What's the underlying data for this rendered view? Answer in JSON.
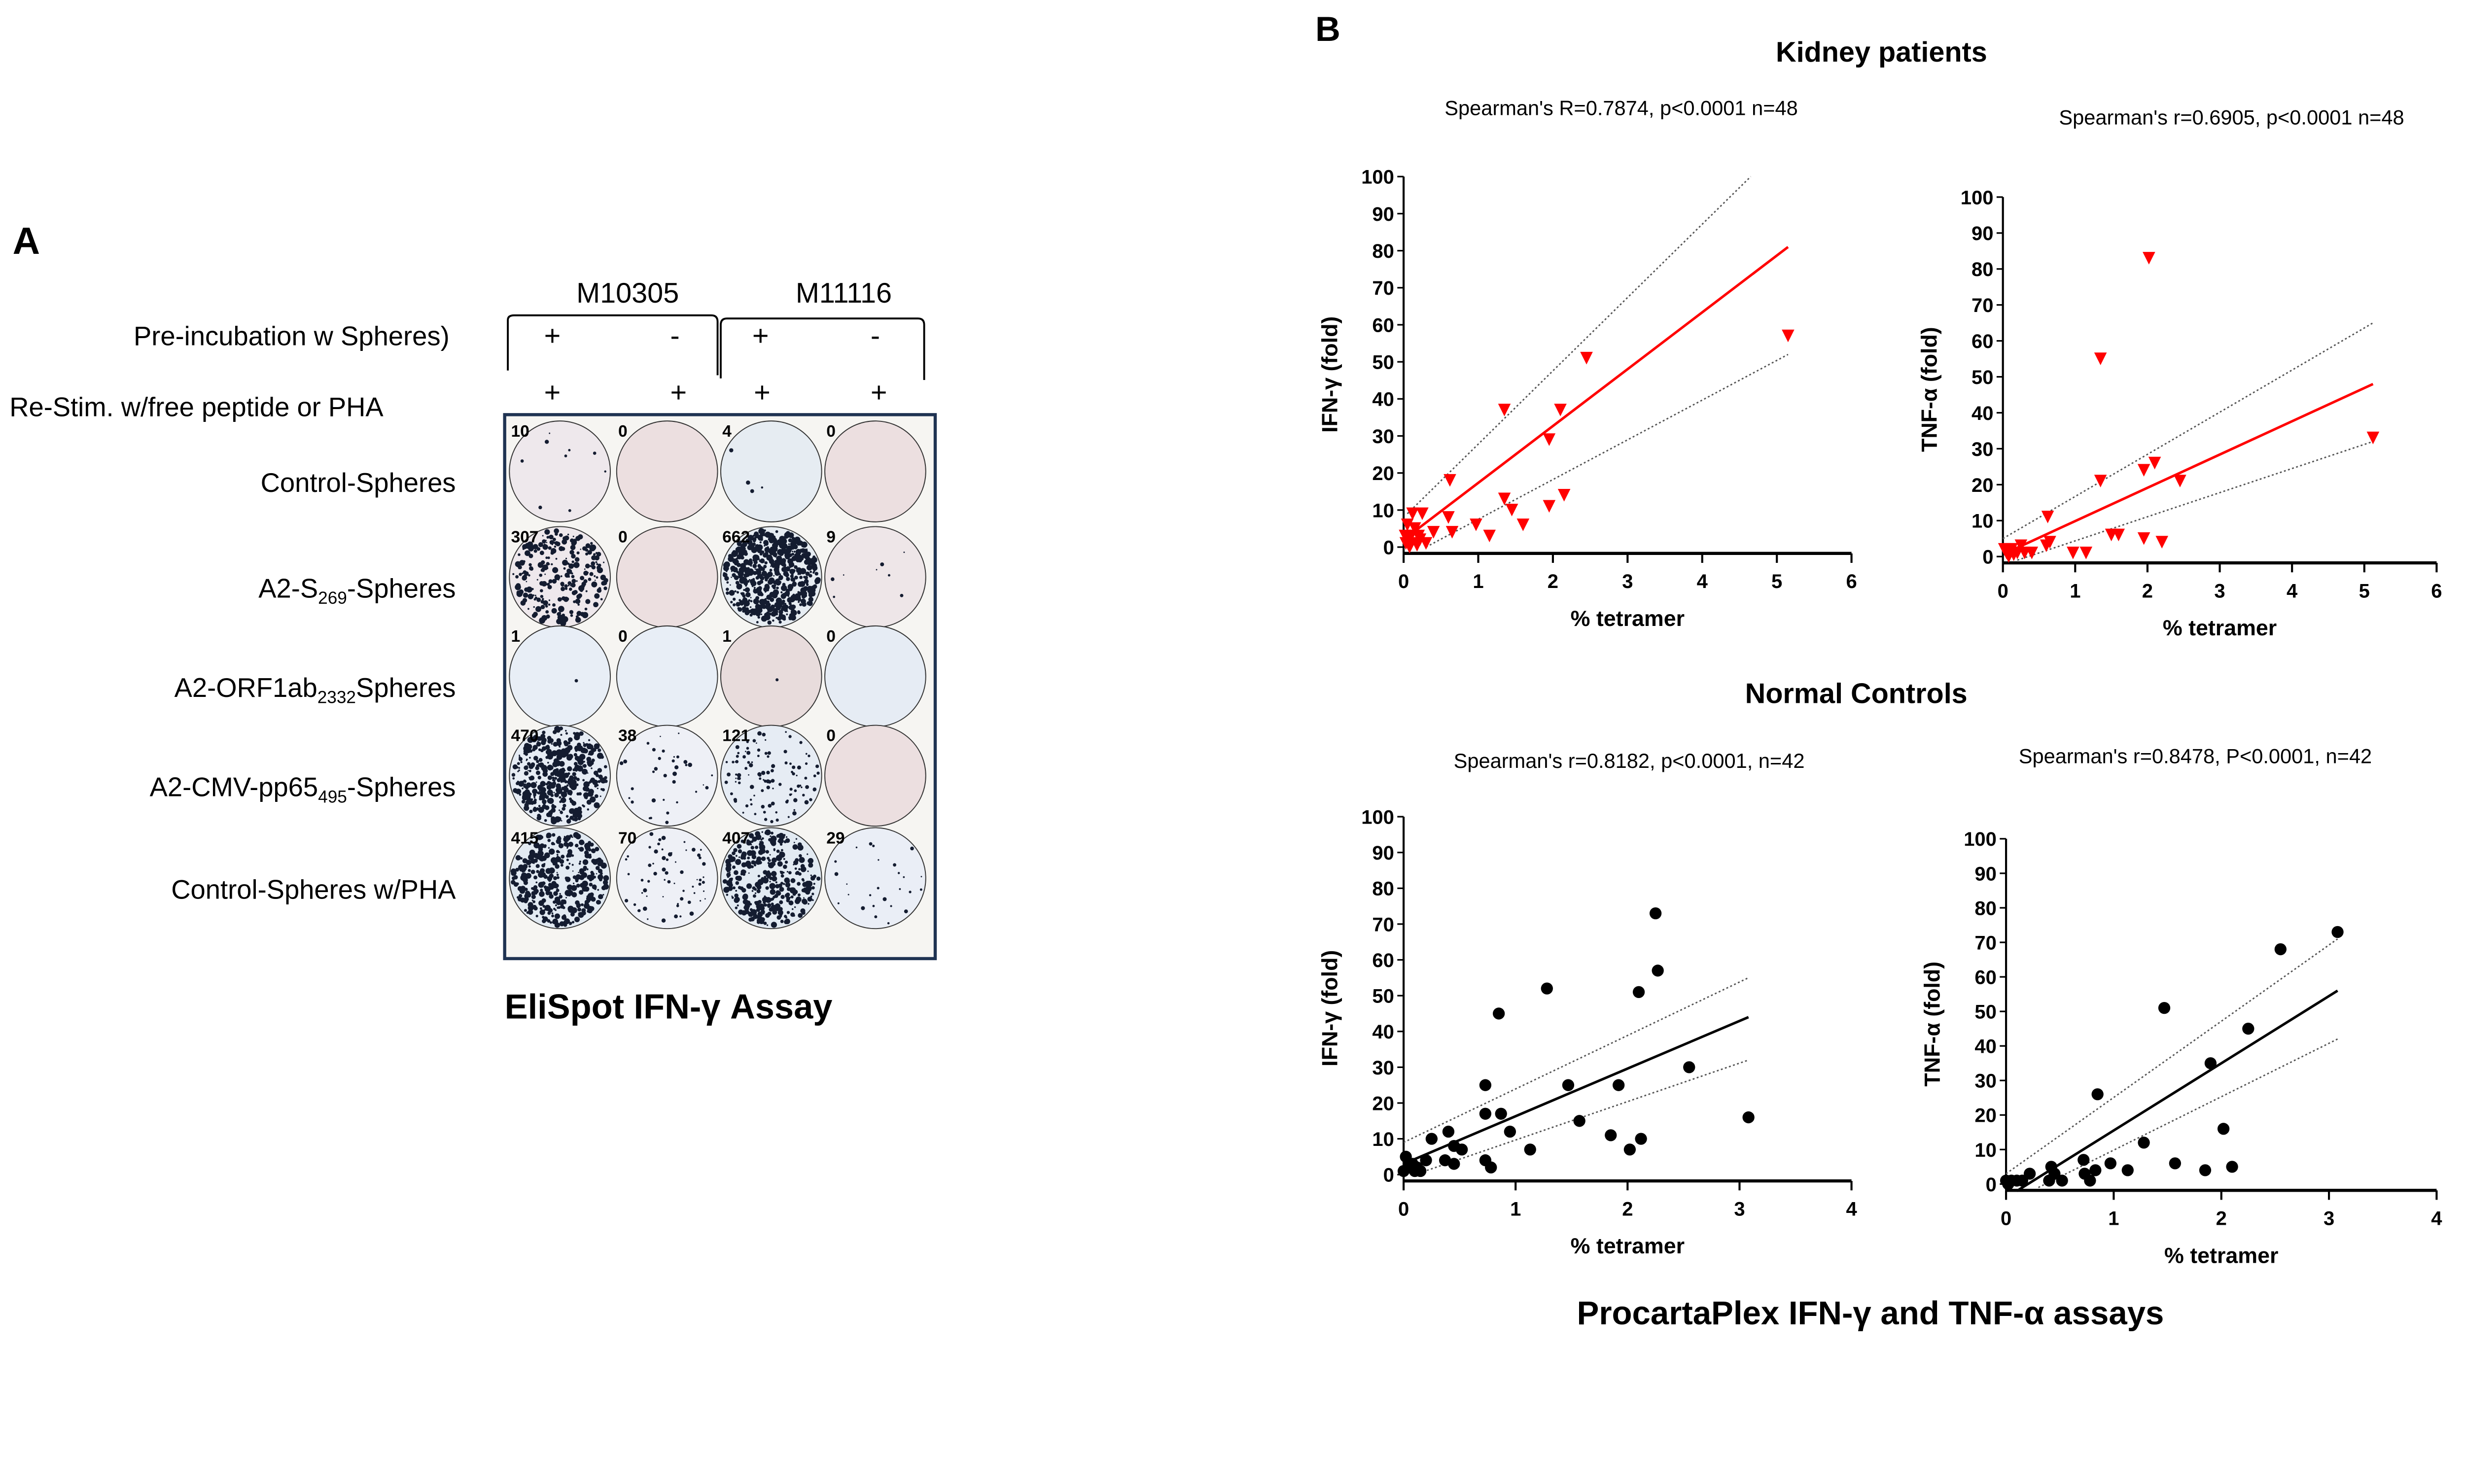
{
  "panel_a": {
    "letter": "A",
    "donors": [
      "M10305",
      "M11116"
    ],
    "pre_incubation_label": "Pre-incubation w Spheres)",
    "restim_label": "Re-Stim. w/free peptide or PHA",
    "pre_incubation_signs": [
      "+",
      "-",
      "+",
      "-"
    ],
    "restim_signs": [
      "+",
      "+",
      "+",
      "+"
    ],
    "rows": [
      {
        "pre": "Control-Spheres",
        "sub": "",
        "post": ""
      },
      {
        "pre": "A2-S",
        "sub": "269",
        "post": "-Spheres"
      },
      {
        "pre": "A2-ORF1ab",
        "sub": "2332",
        "post": "Spheres"
      },
      {
        "pre": "A2-CMV-pp65",
        "sub": "495",
        "post": "-Spheres"
      },
      {
        "pre": "Control-Spheres w/PHA",
        "sub": "",
        "post": ""
      }
    ],
    "wells": [
      [
        {
          "count": "10",
          "tint": "#eee8ec"
        },
        {
          "count": "0",
          "tint": "#ecdfe0"
        },
        {
          "count": "4",
          "tint": "#e6ecf2"
        },
        {
          "count": "0",
          "tint": "#ecdfe0"
        }
      ],
      [
        {
          "count": "307",
          "tint": "#eee8ec"
        },
        {
          "count": "0",
          "tint": "#ecdfe0"
        },
        {
          "count": "662",
          "tint": "#e6ecf2"
        },
        {
          "count": "9",
          "tint": "#eee6e8"
        }
      ],
      [
        {
          "count": "1",
          "tint": "#e8eef6"
        },
        {
          "count": "0",
          "tint": "#e8eef6"
        },
        {
          "count": "1",
          "tint": "#e8dcdc"
        },
        {
          "count": "0",
          "tint": "#e6ecf4"
        }
      ],
      [
        {
          "count": "470",
          "tint": "#e6ecf4"
        },
        {
          "count": "38",
          "tint": "#eef0f6"
        },
        {
          "count": "121",
          "tint": "#e6ecf4"
        },
        {
          "count": "0",
          "tint": "#ecdfe0"
        }
      ],
      [
        {
          "count": "415",
          "tint": "#e2eaf2"
        },
        {
          "count": "70",
          "tint": "#eef0f6"
        },
        {
          "count": "407",
          "tint": "#e2eaf2"
        },
        {
          "count": "29",
          "tint": "#eaeef6"
        }
      ]
    ],
    "caption": "EliSpot IFN-γ Assay",
    "plate_border_color": "#1f3352",
    "spot_color": "#141c30"
  },
  "panel_b": {
    "letter": "B",
    "group_titles": [
      "Kidney patients",
      "Normal Controls"
    ],
    "caption": "ProcartaPlex IFN-γ and TNF-α assays"
  },
  "chart_data": [
    {
      "type": "scatter",
      "group": "Kidney patients",
      "title": "Spearman's R=0.7874, p<0.0001 n=48",
      "xlabel": "% tetramer",
      "ylabel": "IFN-γ (fold)",
      "xlim": [
        0,
        6
      ],
      "ylim": [
        0,
        100
      ],
      "xticks": [
        "0",
        "1",
        "2",
        "3",
        "4",
        "5",
        "6"
      ],
      "yticks": [
        "0",
        "10",
        "20",
        "30",
        "40",
        "50",
        "60",
        "70",
        "80",
        "90",
        "100"
      ],
      "marker": "triangle-down",
      "color": "#ff0000",
      "points": [
        [
          5.15,
          57
        ],
        [
          2.45,
          51
        ],
        [
          1.35,
          37
        ],
        [
          2.1,
          37
        ],
        [
          1.95,
          29
        ],
        [
          0.62,
          18
        ],
        [
          2.15,
          14
        ],
        [
          1.35,
          13
        ],
        [
          1.45,
          10
        ],
        [
          1.95,
          11
        ],
        [
          0.6,
          8
        ],
        [
          1.6,
          6
        ],
        [
          0.97,
          6
        ],
        [
          1.15,
          3
        ],
        [
          0.4,
          4
        ],
        [
          0.65,
          4
        ],
        [
          0.12,
          9
        ],
        [
          0.25,
          9
        ],
        [
          0.05,
          6
        ],
        [
          0.15,
          5
        ],
        [
          0.2,
          3
        ],
        [
          0.05,
          2
        ],
        [
          0.1,
          1
        ],
        [
          0.3,
          1
        ],
        [
          0.02,
          3
        ],
        [
          0.08,
          0
        ],
        [
          0.18,
          0.5
        ],
        [
          0.03,
          1
        ],
        [
          0.1,
          3
        ],
        [
          0.22,
          2
        ]
      ],
      "fit": [
        [
          0,
          2
        ],
        [
          5.15,
          81
        ]
      ],
      "ci_upper": [
        [
          0.05,
          9
        ],
        [
          4.65,
          100
        ]
      ],
      "ci_lower": [
        [
          0.3,
          0
        ],
        [
          5.15,
          52
        ]
      ]
    },
    {
      "type": "scatter",
      "group": "Kidney patients",
      "title": "Spearman's r=0.6905, p<0.0001 n=48",
      "xlabel": "% tetramer",
      "ylabel": "TNF-α (fold)",
      "xlim": [
        0,
        6
      ],
      "ylim": [
        0,
        100
      ],
      "xticks": [
        "0",
        "1",
        "2",
        "3",
        "4",
        "5",
        "6"
      ],
      "yticks": [
        "0",
        "10",
        "20",
        "30",
        "40",
        "50",
        "60",
        "70",
        "80",
        "90",
        "100"
      ],
      "marker": "triangle-down",
      "color": "#ff0000",
      "points": [
        [
          2.02,
          83
        ],
        [
          1.35,
          55
        ],
        [
          5.12,
          33
        ],
        [
          2.1,
          26
        ],
        [
          1.95,
          24
        ],
        [
          1.35,
          21
        ],
        [
          2.45,
          21
        ],
        [
          0.62,
          11
        ],
        [
          1.5,
          6
        ],
        [
          1.6,
          6
        ],
        [
          1.95,
          5
        ],
        [
          2.2,
          4
        ],
        [
          0.65,
          4
        ],
        [
          0.6,
          3
        ],
        [
          0.97,
          1
        ],
        [
          1.15,
          1
        ],
        [
          0.4,
          1
        ],
        [
          0.25,
          3
        ],
        [
          0.02,
          2
        ],
        [
          0.05,
          1
        ],
        [
          0.1,
          2
        ],
        [
          0.15,
          0.5
        ],
        [
          0.2,
          1
        ],
        [
          0.08,
          0
        ],
        [
          0.3,
          1
        ],
        [
          0.12,
          2
        ]
      ],
      "fit": [
        [
          0.15,
          2
        ],
        [
          5.12,
          48
        ]
      ],
      "ci_upper": [
        [
          0,
          5
        ],
        [
          5.12,
          65
        ]
      ],
      "ci_lower": [
        [
          0.2,
          -1
        ],
        [
          5.12,
          32
        ]
      ]
    },
    {
      "type": "scatter",
      "group": "Normal Controls",
      "title": "Spearman's r=0.8182, p<0.0001, n=42",
      "xlabel": "% tetramer",
      "ylabel": "IFN-γ (fold)",
      "xlim": [
        0,
        4
      ],
      "ylim": [
        0,
        100
      ],
      "xticks": [
        "0",
        "1",
        "2",
        "3",
        "4"
      ],
      "yticks": [
        "0",
        "10",
        "20",
        "30",
        "40",
        "50",
        "60",
        "70",
        "80",
        "90",
        "100"
      ],
      "marker": "circle",
      "color": "#000000",
      "points": [
        [
          2.25,
          73
        ],
        [
          2.27,
          57
        ],
        [
          1.28,
          52
        ],
        [
          2.1,
          51
        ],
        [
          0.85,
          45
        ],
        [
          2.55,
          30
        ],
        [
          0.73,
          25
        ],
        [
          1.47,
          25
        ],
        [
          1.92,
          25
        ],
        [
          0.73,
          17
        ],
        [
          0.87,
          17
        ],
        [
          1.57,
          15
        ],
        [
          3.08,
          16
        ],
        [
          0.95,
          12
        ],
        [
          0.4,
          12
        ],
        [
          1.85,
          11
        ],
        [
          2.12,
          10
        ],
        [
          0.25,
          10
        ],
        [
          0.45,
          8
        ],
        [
          0.52,
          7
        ],
        [
          1.13,
          7
        ],
        [
          2.02,
          7
        ],
        [
          0.37,
          4
        ],
        [
          0.73,
          4
        ],
        [
          0.45,
          3
        ],
        [
          0.78,
          2
        ],
        [
          0.2,
          4
        ],
        [
          0.02,
          5
        ],
        [
          0.05,
          2
        ],
        [
          0.1,
          1
        ],
        [
          0.15,
          1
        ],
        [
          0.0,
          1
        ],
        [
          0.08,
          3
        ],
        [
          0.12,
          2
        ]
      ],
      "fit": [
        [
          0,
          3
        ],
        [
          3.08,
          44
        ]
      ],
      "ci_upper": [
        [
          0,
          9
        ],
        [
          3.08,
          55
        ]
      ],
      "ci_lower": [
        [
          0.1,
          0
        ],
        [
          3.08,
          32
        ]
      ]
    },
    {
      "type": "scatter",
      "group": "Normal Controls",
      "title": "Spearman's r=0.8478, P<0.0001, n=42",
      "xlabel": "% tetramer",
      "ylabel": "TNF-α (fold)",
      "xlim": [
        0,
        4
      ],
      "ylim": [
        0,
        100
      ],
      "xticks": [
        "0",
        "1",
        "2",
        "3",
        "4"
      ],
      "yticks": [
        "0",
        "10",
        "20",
        "30",
        "40",
        "50",
        "60",
        "70",
        "80",
        "90",
        "100"
      ],
      "marker": "circle",
      "color": "#000000",
      "points": [
        [
          3.08,
          73
        ],
        [
          2.55,
          68
        ],
        [
          1.47,
          51
        ],
        [
          2.25,
          45
        ],
        [
          1.9,
          35
        ],
        [
          0.85,
          26
        ],
        [
          2.02,
          16
        ],
        [
          1.28,
          12
        ],
        [
          0.72,
          7
        ],
        [
          0.97,
          6
        ],
        [
          1.57,
          6
        ],
        [
          1.85,
          4
        ],
        [
          2.1,
          5
        ],
        [
          1.13,
          4
        ],
        [
          0.83,
          4
        ],
        [
          0.42,
          5
        ],
        [
          0.45,
          3
        ],
        [
          0.73,
          3
        ],
        [
          0.22,
          3
        ],
        [
          0.78,
          1
        ],
        [
          0.4,
          1
        ],
        [
          0.52,
          1
        ],
        [
          0.05,
          1
        ],
        [
          0.1,
          1
        ],
        [
          0.15,
          1
        ],
        [
          0,
          1
        ],
        [
          0.02,
          0
        ]
      ],
      "fit": [
        [
          0.1,
          -2
        ],
        [
          3.08,
          56
        ]
      ],
      "ci_upper": [
        [
          0,
          3
        ],
        [
          3.08,
          71
        ]
      ],
      "ci_lower": [
        [
          0.3,
          -1
        ],
        [
          3.08,
          42
        ]
      ]
    }
  ]
}
